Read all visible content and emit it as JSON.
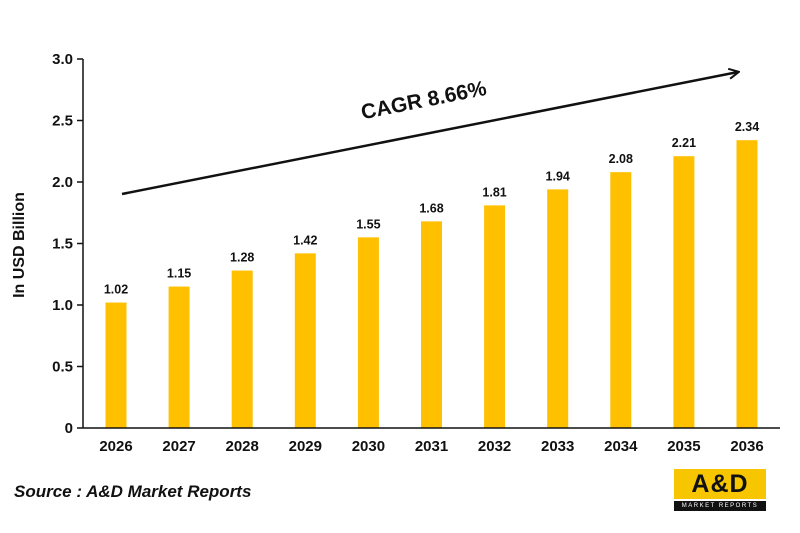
{
  "chart_data": {
    "type": "bar",
    "categories": [
      "2026",
      "2027",
      "2028",
      "2029",
      "2030",
      "2031",
      "2032",
      "2033",
      "2034",
      "2035",
      "2036"
    ],
    "values": [
      1.02,
      1.15,
      1.28,
      1.42,
      1.55,
      1.68,
      1.81,
      1.94,
      2.08,
      2.21,
      2.34
    ],
    "data_labels": [
      "1.02",
      "1.15",
      "1.28",
      "1.42",
      "1.55",
      "1.68",
      "1.81",
      "1.94",
      "2.08",
      "2.21",
      "2.34"
    ],
    "ylabel": "In USD Billion",
    "ylim": [
      0,
      3.0
    ],
    "yticks": [
      "0",
      "0.5",
      "1.0",
      "1.5",
      "2.0",
      "2.5",
      "3.0"
    ],
    "grid": false,
    "legend": "none",
    "annotation": "CAGR 8.66%",
    "bar_color": "#ffc000"
  },
  "source": "Source : A&D Market Reports",
  "logo": {
    "main": "A&D",
    "sub": "MARKET REPORTS"
  }
}
